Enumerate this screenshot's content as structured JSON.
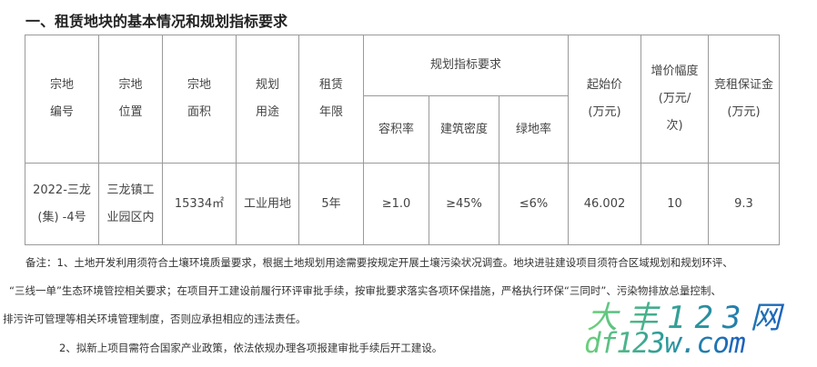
{
  "title": "一、租赁地块的基本情况和规划指标要求",
  "table": {
    "headers": {
      "parcel_no": [
        "宗地",
        "编号"
      ],
      "location": [
        "宗地",
        "位置"
      ],
      "area": [
        "宗地",
        "面积"
      ],
      "use": [
        "规划",
        "用途"
      ],
      "term": [
        "租赁",
        "年限"
      ],
      "planning": "规划指标要求",
      "far": "容积率",
      "density": "建筑密度",
      "green": "绿地率",
      "start_price": [
        "起始价",
        "(万元)"
      ],
      "increment": [
        "增价幅度",
        "(万元/",
        "次)"
      ],
      "deposit": [
        "竞租保证金",
        "(万元)"
      ]
    },
    "row": {
      "parcel_no": [
        "2022-三龙",
        "(集) -4号"
      ],
      "location": [
        "三龙镇工",
        "业园区内"
      ],
      "area": "15334㎡",
      "use": "工业用地",
      "term": "5年",
      "far": "≥1.0",
      "density": "≥45%",
      "green": "≤6%",
      "start_price": "46.002",
      "increment": "10",
      "deposit": "9.3"
    }
  },
  "notes": [
    "备注：1、土地开发利用须符合土壤环境质量要求，根据土地规划用途需要按规定开展土壤污染状况调查。地块进驻建设项目须符合区域规划和规划环评、",
    "“三线一单”生态环境管控相关要求；在项目开工建设前履行环评审批手续，按审批要求落实各项环保措施，严格执行环保“三同时”、污染物排放总量控制、",
    "排污许可管理等相关环境管理制度，否则应承担相应的违法责任。",
    "2、拟新上项目需符合国家产业政策，依法依规办理各项报建审批手续后开工建设。"
  ],
  "watermark": {
    "line1": "大丰123网",
    "line2": "df123w.com",
    "colors": [
      "#6fd17a",
      "#1a5fc0"
    ]
  }
}
